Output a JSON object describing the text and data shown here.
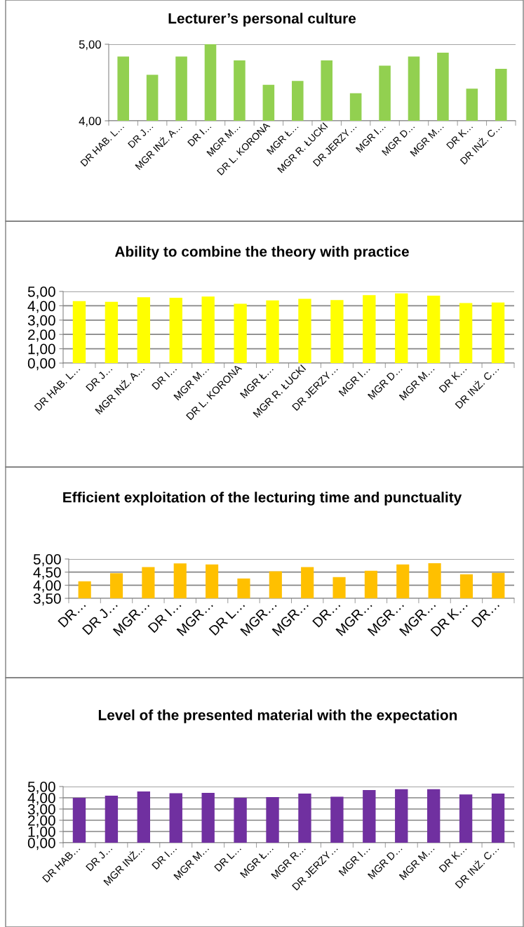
{
  "chart_data": [
    {
      "type": "bar",
      "title": "Lecturer’s personal culture",
      "categories": [
        "DR HAB. L…",
        "DR J…",
        "MGR INŻ. A…",
        "DR I…",
        "MGR M…",
        "DR L. KORONA",
        "MGR Ł…",
        "MGR R. ŁUCKI",
        "DR JERZY…",
        "MGR I…",
        "MGR D…",
        "MGR M…",
        "DR K…",
        "DR INŻ. C…"
      ],
      "series": [
        {
          "color": "#92d050",
          "values": [
            4.84,
            4.6,
            4.84,
            5.0,
            4.79,
            4.47,
            4.52,
            4.79,
            4.36,
            4.72,
            4.84,
            4.89,
            4.42,
            4.68
          ]
        }
      ],
      "ylim": [
        4,
        5
      ],
      "yticks": [
        {
          "value": 4,
          "label": "4,00"
        },
        {
          "value": 5,
          "label": "5,00"
        }
      ],
      "grid": "y"
    },
    {
      "type": "bar",
      "title": "Ability to combine the theory with practice",
      "categories": [
        "DR HAB. L…",
        "DR J…",
        "MGR INŻ. A…",
        "DR I…",
        "MGR M…",
        "DR L. KORONA",
        "MGR Ł…",
        "MGR R. ŁUCKI",
        "DR JERZY…",
        "MGR I…",
        "MGR D…",
        "MGR M…",
        "DR K…",
        "DR INŻ. C…"
      ],
      "series": [
        {
          "color": "#ffff00",
          "values": [
            4.33,
            4.28,
            4.6,
            4.56,
            4.65,
            4.14,
            4.37,
            4.49,
            4.4,
            4.74,
            4.86,
            4.7,
            4.19,
            4.23
          ]
        }
      ],
      "ylim": [
        0,
        5
      ],
      "yticks": [
        {
          "value": 0,
          "label": "0,00"
        },
        {
          "value": 1,
          "label": "1,00"
        },
        {
          "value": 2,
          "label": "2,00"
        },
        {
          "value": 3,
          "label": "3,00"
        },
        {
          "value": 4,
          "label": "4,00"
        },
        {
          "value": 5,
          "label": "5,00"
        }
      ],
      "grid": "y"
    },
    {
      "type": "bar",
      "title": "Efficient exploitation of the lecturing time and punctuality",
      "categories": [
        "DR…",
        "DR J…",
        "MGR…",
        "DR I…",
        "MGR…",
        "DR L…",
        "MGR…",
        "MGR…",
        "DR…",
        "MGR…",
        "MGR…",
        "MGR…",
        "DR K…",
        "DR…"
      ],
      "series": [
        {
          "color": "#ffc000",
          "values": [
            4.15,
            4.46,
            4.69,
            4.83,
            4.79,
            4.26,
            4.53,
            4.69,
            4.31,
            4.55,
            4.79,
            4.84,
            4.42,
            4.47
          ]
        }
      ],
      "ylim": [
        3.5,
        5
      ],
      "yticks": [
        {
          "value": 3.5,
          "label": "3,50"
        },
        {
          "value": 4,
          "label": "4,00"
        },
        {
          "value": 4.5,
          "label": "4,50"
        },
        {
          "value": 5,
          "label": "5,00"
        }
      ],
      "grid": "y"
    },
    {
      "type": "bar",
      "title": "Level of the presented material with the expectation",
      "categories": [
        "DR HAB…",
        "DR J…",
        "MGR INŻ…",
        "DR I…",
        "MGR M…",
        "DR L…",
        "MGR Ł…",
        "MGR R…",
        "DR JERZY…",
        "MGR I…",
        "MGR D…",
        "MGR M…",
        "DR K…",
        "DR INŻ. C…"
      ],
      "series": [
        {
          "color": "#7030a0",
          "values": [
            4.0,
            4.18,
            4.56,
            4.41,
            4.44,
            4.0,
            4.06,
            4.38,
            4.09,
            4.68,
            4.76,
            4.76,
            4.29,
            4.38
          ]
        }
      ],
      "ylim": [
        0,
        5
      ],
      "yticks": [
        {
          "value": 0,
          "label": "0,00"
        },
        {
          "value": 1,
          "label": "1,00"
        },
        {
          "value": 2,
          "label": "2,00"
        },
        {
          "value": 3,
          "label": "3,00"
        },
        {
          "value": 4,
          "label": "4,00"
        },
        {
          "value": 5,
          "label": "5,00"
        }
      ],
      "grid": "y"
    }
  ]
}
